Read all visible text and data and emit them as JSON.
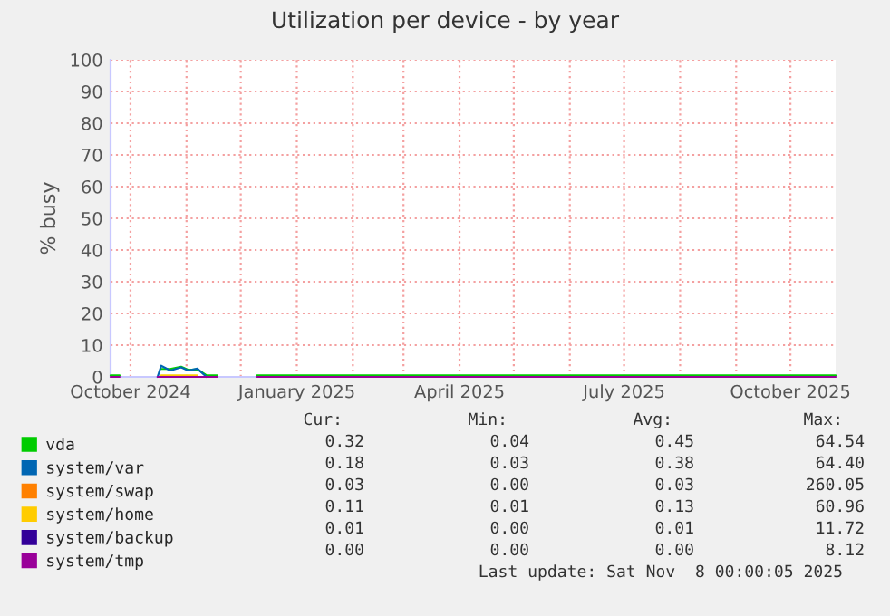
{
  "chart_data": {
    "type": "line",
    "title": "Utilization per device - by year",
    "ylabel": "% busy",
    "x": [
      "2024-09-20",
      "2024-09-25",
      "2024-09-26",
      "2024-10-16",
      "2024-10-18",
      "2024-10-23",
      "2024-10-29",
      "2024-11-02",
      "2024-11-07",
      "2024-11-12",
      "2024-11-18",
      "2024-11-19",
      "2024-12-10",
      "2025-01-20",
      "2025-04-15",
      "2025-07-01",
      "2025-10-26"
    ],
    "series": [
      {
        "name": "vda",
        "color": "#00cc00",
        "values": [
          0.5,
          0.5,
          null,
          null,
          2.5,
          2.5,
          3.2,
          2.2,
          2.4,
          0.5,
          0.5,
          null,
          0.5,
          0.5,
          0.5,
          0.5,
          0.5
        ]
      },
      {
        "name": "system/var",
        "color": "#0066b3",
        "values": [
          null,
          null,
          null,
          0,
          3.5,
          2,
          3,
          2,
          2.6,
          0,
          null,
          null,
          null,
          null,
          null,
          null,
          null
        ]
      },
      {
        "name": "system/swap",
        "color": "#ff8000",
        "values": [
          null,
          null,
          null,
          null,
          null,
          null,
          null,
          null,
          null,
          null,
          null,
          null,
          null,
          null,
          null,
          null,
          null
        ]
      },
      {
        "name": "system/home",
        "color": "#ffcc00",
        "values": [
          null,
          null,
          null,
          null,
          0.5,
          0.5,
          0.5,
          0.5,
          0.5,
          null,
          null,
          null,
          null,
          null,
          null,
          null,
          null
        ]
      },
      {
        "name": "system/backup",
        "color": "#330099",
        "values": [
          null,
          null,
          null,
          null,
          null,
          null,
          null,
          null,
          null,
          null,
          null,
          null,
          null,
          null,
          null,
          null,
          null
        ]
      },
      {
        "name": "system/tmp",
        "color": "#990099",
        "values": [
          0,
          0,
          null,
          0,
          0,
          0,
          0,
          0,
          0,
          0,
          0,
          null,
          0,
          0,
          0,
          0,
          0
        ]
      }
    ],
    "xlim": [
      "2024-09-20",
      "2025-10-26"
    ],
    "xticks": [
      {
        "value": "2024-10-01",
        "label": "October 2024"
      },
      {
        "value": "2024-11-01",
        "label": null
      },
      {
        "value": "2024-12-01",
        "label": null
      },
      {
        "value": "2025-01-01",
        "label": "January 2025"
      },
      {
        "value": "2025-02-01",
        "label": null
      },
      {
        "value": "2025-03-01",
        "label": null
      },
      {
        "value": "2025-04-01",
        "label": "April 2025"
      },
      {
        "value": "2025-05-01",
        "label": null
      },
      {
        "value": "2025-06-01",
        "label": null
      },
      {
        "value": "2025-07-01",
        "label": "July 2025"
      },
      {
        "value": "2025-08-01",
        "label": null
      },
      {
        "value": "2025-09-01",
        "label": null
      },
      {
        "value": "2025-10-01",
        "label": "October 2025"
      }
    ],
    "ylim": [
      0,
      100
    ],
    "yticks": [
      0,
      10,
      20,
      30,
      40,
      50,
      60,
      70,
      80,
      90,
      100
    ],
    "grid": true,
    "legend": "bottom",
    "line_style": "solid",
    "annotations": [
      "Cur:",
      "Min:",
      "Avg:",
      "Max:",
      "0.32",
      "0.04",
      "0.45",
      "64.54",
      "0.18",
      "0.03",
      "0.38",
      "64.40",
      "0.03",
      "0.00",
      "0.03",
      "260.05",
      "0.11",
      "0.01",
      "0.13",
      "60.96",
      "0.01",
      "0.00",
      "0.01",
      "11.72",
      "0.00",
      "0.00",
      "0.00",
      "8.12",
      "Last update: Sat Nov  8 00:00:05 2025"
    ]
  }
}
